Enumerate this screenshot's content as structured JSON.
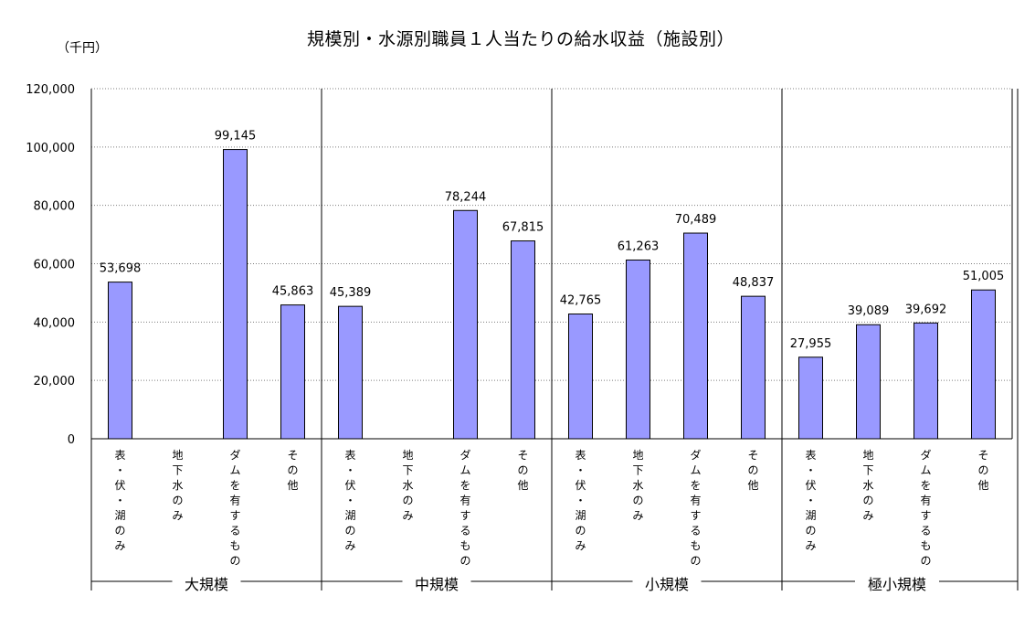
{
  "chart_data": {
    "type": "bar",
    "title": "規模別・水源別職員１人当たりの給水収益（施設別）",
    "unit_label": "（千円）",
    "ylim": [
      0,
      120000
    ],
    "y_ticks": [
      "0",
      "20,000",
      "40,000",
      "60,000",
      "80,000",
      "100,000",
      "120,000"
    ],
    "y_tick_values": [
      0,
      20000,
      40000,
      60000,
      80000,
      100000,
      120000
    ],
    "grid": true,
    "bar_color": "#9999ff",
    "categories": [
      "表・伏・湖のみ",
      "地下水のみ",
      "ダムを有するもの",
      "その他"
    ],
    "groups": [
      {
        "name": "大規模",
        "values": [
          53698,
          null,
          99145,
          45863
        ],
        "labels": [
          "53,698",
          "",
          "99,145",
          "45,863"
        ]
      },
      {
        "name": "中規模",
        "values": [
          45389,
          null,
          78244,
          67815
        ],
        "labels": [
          "45,389",
          "",
          "78,244",
          "67,815"
        ]
      },
      {
        "name": "小規模",
        "values": [
          42765,
          61263,
          70489,
          48837
        ],
        "labels": [
          "42,765",
          "61,263",
          "70,489",
          "48,837"
        ]
      },
      {
        "name": "極小規模",
        "values": [
          27955,
          39089,
          39692,
          51005
        ],
        "labels": [
          "27,955",
          "39,089",
          "39,692",
          "51,005"
        ]
      }
    ]
  }
}
